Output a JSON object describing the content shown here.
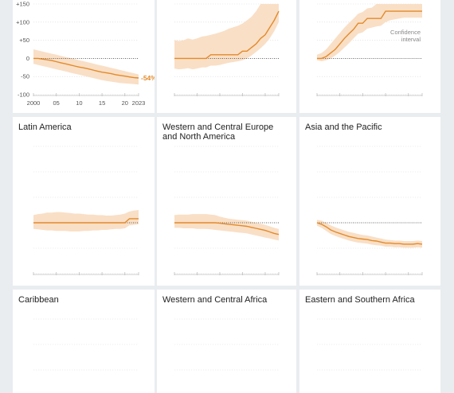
{
  "colors": {
    "background": "#e9edf0",
    "panel": "#ffffff",
    "line": "#e38a2b",
    "band": "#f9dfc6",
    "grid": "#d9d9d9",
    "zero": "#333333"
  },
  "chart_data": [
    {
      "type": "area",
      "title": "",
      "yticks": [
        "+150",
        "+100",
        "+50",
        "0",
        "-50",
        "-100"
      ],
      "ytick_values": [
        150,
        100,
        50,
        0,
        -50,
        -100
      ],
      "xticks": [
        "2000",
        "05",
        "10",
        "15",
        "20",
        "2023"
      ],
      "xtick_values": [
        2000,
        2005,
        2010,
        2015,
        2020,
        2023
      ],
      "ylim": [
        -100,
        150
      ],
      "end_label": "-54%",
      "x": [
        2000,
        2001,
        2002,
        2003,
        2004,
        2005,
        2006,
        2007,
        2008,
        2009,
        2010,
        2011,
        2012,
        2013,
        2014,
        2015,
        2016,
        2017,
        2018,
        2019,
        2020,
        2021,
        2022,
        2023
      ],
      "values": [
        0,
        0,
        -2,
        -4,
        -6,
        -9,
        -12,
        -15,
        -18,
        -21,
        -24,
        -26,
        -29,
        -32,
        -35,
        -38,
        -40,
        -42,
        -45,
        -47,
        -49,
        -51,
        -53,
        -54
      ],
      "upper": [
        25,
        22,
        19,
        16,
        13,
        10,
        7,
        4,
        1,
        -2,
        -5,
        -8,
        -11,
        -14,
        -17,
        -20,
        -23,
        -26,
        -29,
        -32,
        -35,
        -38,
        -41,
        -44
      ],
      "lower": [
        -15,
        -18,
        -21,
        -24,
        -27,
        -30,
        -33,
        -36,
        -39,
        -42,
        -45,
        -48,
        -51,
        -54,
        -57,
        -60,
        -62,
        -64,
        -66,
        -68,
        -69,
        -70,
        -71,
        -72
      ]
    },
    {
      "type": "area",
      "title": "",
      "ylim": [
        -100,
        150
      ],
      "x": [
        2000,
        2001,
        2002,
        2003,
        2004,
        2005,
        2006,
        2007,
        2008,
        2009,
        2010,
        2011,
        2012,
        2013,
        2014,
        2015,
        2016,
        2017,
        2018,
        2019,
        2020,
        2021,
        2022,
        2023
      ],
      "values": [
        0,
        0,
        0,
        0,
        0,
        0,
        0,
        0,
        10,
        10,
        10,
        10,
        10,
        10,
        10,
        20,
        20,
        30,
        40,
        55,
        65,
        85,
        105,
        130
      ],
      "upper": [
        50,
        48,
        50,
        55,
        52,
        55,
        60,
        62,
        65,
        68,
        72,
        76,
        82,
        86,
        90,
        96,
        105,
        115,
        130,
        150,
        150,
        150,
        150,
        150
      ],
      "lower": [
        -28,
        -30,
        -29,
        -27,
        -30,
        -28,
        -25,
        -25,
        -20,
        -20,
        -18,
        -15,
        -12,
        -10,
        -8,
        -5,
        0,
        8,
        18,
        28,
        40,
        55,
        75,
        100
      ]
    },
    {
      "type": "area",
      "title": "",
      "ylim": [
        -100,
        150
      ],
      "annotation": "Confidence\ninterval",
      "x": [
        2000,
        2001,
        2002,
        2003,
        2004,
        2005,
        2006,
        2007,
        2008,
        2009,
        2010,
        2011,
        2012,
        2013,
        2014,
        2015,
        2016,
        2017,
        2018,
        2019,
        2020,
        2021,
        2022,
        2023
      ],
      "values": [
        0,
        0,
        5,
        15,
        25,
        40,
        55,
        68,
        80,
        97,
        97,
        110,
        110,
        110,
        110,
        130,
        130,
        130,
        130,
        130,
        130,
        130,
        130,
        130
      ],
      "upper": [
        10,
        15,
        25,
        40,
        55,
        70,
        85,
        98,
        110,
        123,
        128,
        138,
        140,
        150,
        150,
        150,
        150,
        150,
        150,
        150,
        150,
        150,
        150,
        150
      ],
      "lower": [
        -5,
        -8,
        -5,
        0,
        8,
        18,
        30,
        42,
        55,
        68,
        72,
        82,
        85,
        88,
        90,
        100,
        105,
        108,
        110,
        112,
        112,
        112,
        112,
        112
      ]
    },
    {
      "type": "area",
      "title": "Latin America",
      "ylim": [
        -100,
        150
      ],
      "x": [
        2000,
        2001,
        2002,
        2003,
        2004,
        2005,
        2006,
        2007,
        2008,
        2009,
        2010,
        2011,
        2012,
        2013,
        2014,
        2015,
        2016,
        2017,
        2018,
        2019,
        2020,
        2021,
        2022,
        2023
      ],
      "values": [
        0,
        0,
        0,
        0,
        0,
        0,
        0,
        0,
        0,
        0,
        0,
        0,
        0,
        0,
        0,
        0,
        0,
        0,
        0,
        0,
        0,
        8,
        8,
        8
      ],
      "upper": [
        15,
        17,
        18,
        20,
        20,
        21,
        21,
        20,
        19,
        18,
        18,
        17,
        16,
        16,
        15,
        15,
        14,
        14,
        15,
        16,
        18,
        22,
        24,
        25
      ],
      "lower": [
        -12,
        -13,
        -14,
        -15,
        -15,
        -16,
        -16,
        -16,
        -17,
        -17,
        -17,
        -16,
        -16,
        -15,
        -15,
        -14,
        -14,
        -13,
        -12,
        -12,
        -11,
        -5,
        -4,
        -3
      ]
    },
    {
      "type": "area",
      "title": "Western and Central Europe\nand North America",
      "ylim": [
        -100,
        150
      ],
      "x": [
        2000,
        2001,
        2002,
        2003,
        2004,
        2005,
        2006,
        2007,
        2008,
        2009,
        2010,
        2011,
        2012,
        2013,
        2014,
        2015,
        2016,
        2017,
        2018,
        2019,
        2020,
        2021,
        2022,
        2023
      ],
      "values": [
        0,
        0,
        0,
        0,
        0,
        0,
        0,
        0,
        0,
        0,
        -1,
        -2,
        -3,
        -4,
        -5,
        -6,
        -7,
        -9,
        -11,
        -13,
        -15,
        -18,
        -21,
        -23
      ],
      "upper": [
        15,
        16,
        16,
        16,
        17,
        17,
        17,
        17,
        16,
        15,
        12,
        10,
        8,
        7,
        6,
        5,
        4,
        2,
        0,
        -2,
        -4,
        -7,
        -10,
        -12
      ],
      "lower": [
        -10,
        -10,
        -11,
        -11,
        -11,
        -12,
        -12,
        -12,
        -13,
        -14,
        -15,
        -16,
        -17,
        -18,
        -19,
        -20,
        -21,
        -23,
        -25,
        -27,
        -29,
        -31,
        -33,
        -35
      ]
    },
    {
      "type": "area",
      "title": "Asia and the Pacific",
      "ylim": [
        -100,
        150
      ],
      "x": [
        2000,
        2001,
        2002,
        2003,
        2004,
        2005,
        2006,
        2007,
        2008,
        2009,
        2010,
        2011,
        2012,
        2013,
        2014,
        2015,
        2016,
        2017,
        2018,
        2019,
        2020,
        2021,
        2022,
        2023
      ],
      "values": [
        0,
        -3,
        -8,
        -14,
        -18,
        -21,
        -24,
        -27,
        -29,
        -31,
        -32,
        -33,
        -35,
        -36,
        -38,
        -40,
        -40,
        -41,
        -41,
        -42,
        -42,
        -42,
        -41,
        -42
      ],
      "upper": [
        6,
        4,
        0,
        -5,
        -9,
        -12,
        -15,
        -18,
        -20,
        -22,
        -24,
        -25,
        -27,
        -29,
        -31,
        -33,
        -34,
        -35,
        -35,
        -36,
        -36,
        -36,
        -35,
        -36
      ],
      "lower": [
        -6,
        -10,
        -16,
        -22,
        -26,
        -29,
        -32,
        -35,
        -37,
        -39,
        -40,
        -41,
        -43,
        -44,
        -45,
        -47,
        -47,
        -48,
        -48,
        -49,
        -49,
        -49,
        -48,
        -49
      ]
    },
    {
      "type": "area",
      "title": "Caribbean",
      "ylim": [
        -100,
        150
      ],
      "x": [],
      "values": []
    },
    {
      "type": "area",
      "title": "Western and Central Africa",
      "ylim": [
        -100,
        150
      ],
      "x": [],
      "values": []
    },
    {
      "type": "area",
      "title": "Eastern and Southern Africa",
      "ylim": [
        -100,
        150
      ],
      "x": [],
      "values": []
    }
  ]
}
